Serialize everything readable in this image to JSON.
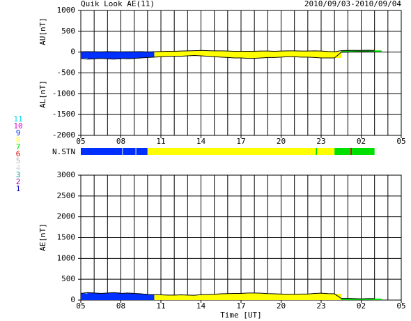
{
  "chart_data": [
    {
      "type": "range-area",
      "title": "Quik Look AE(11)",
      "date_range": "2010/09/03-2010/09/04",
      "y_labels": [
        "AU[nT]",
        "AL[nT]"
      ],
      "xlim": [
        5,
        29
      ],
      "xticks": [
        {
          "value": 5,
          "label": "05"
        },
        {
          "value": 8,
          "label": "08"
        },
        11,
        14,
        17,
        20,
        23,
        {
          "value": 26,
          "label": "02"
        },
        {
          "value": 29,
          "label": "05"
        }
      ],
      "x_grid_every": 1,
      "ylim": [
        -2000,
        1000
      ],
      "yticks": [
        -2000,
        -1500,
        -1000,
        -500,
        0,
        500,
        1000
      ],
      "grid": true,
      "x": [
        5,
        5.5,
        6,
        6.5,
        7,
        7.5,
        8,
        8.5,
        9,
        9.5,
        10,
        10.5,
        11,
        11.5,
        12,
        12.5,
        13,
        13.5,
        14,
        14.5,
        15,
        15.5,
        16,
        16.5,
        17,
        17.5,
        18,
        18.5,
        19,
        19.5,
        20,
        20.5,
        21,
        21.5,
        22,
        22.5,
        23,
        23.5,
        24,
        24.5,
        25,
        25.5,
        26,
        26.5,
        27
      ],
      "series": [
        {
          "name": "AU",
          "color": "#000000",
          "values": [
            10,
            12,
            10,
            8,
            12,
            10,
            8,
            10,
            10,
            12,
            5,
            10,
            15,
            20,
            20,
            25,
            30,
            35,
            40,
            35,
            30,
            30,
            25,
            20,
            20,
            20,
            20,
            25,
            25,
            20,
            25,
            30,
            30,
            25,
            25,
            30,
            25,
            15,
            10,
            35,
            40,
            40,
            40,
            45,
            40
          ]
        },
        {
          "name": "AL",
          "color": "#000000",
          "values": [
            -150,
            -170,
            -160,
            -150,
            -160,
            -170,
            -150,
            -160,
            -150,
            -140,
            -130,
            -120,
            -110,
            -100,
            -100,
            -100,
            -90,
            -80,
            -90,
            -100,
            -110,
            -120,
            -130,
            -140,
            -140,
            -150,
            -150,
            -140,
            -130,
            -130,
            -120,
            -110,
            -110,
            -120,
            -120,
            -130,
            -140,
            -140,
            -140,
            -5,
            0,
            5,
            10,
            10,
            5
          ]
        }
      ]
    },
    {
      "type": "station-bar",
      "label": "N.STN",
      "xlim": [
        5,
        29
      ],
      "segments": [
        {
          "start": 5,
          "end": 8.1,
          "count": 9
        },
        {
          "start": 8.15,
          "end": 9.1,
          "count": 9
        },
        {
          "start": 9.15,
          "end": 10,
          "count": 9
        },
        {
          "start": 10,
          "end": 22.6,
          "count": 8
        },
        {
          "start": 22.6,
          "end": 22.7,
          "count": 7
        },
        {
          "start": 22.7,
          "end": 24,
          "count": 8
        },
        {
          "start": 24,
          "end": 25.2,
          "count": 7
        },
        {
          "start": 25.2,
          "end": 25.3,
          "count": 6
        },
        {
          "start": 25.3,
          "end": 27,
          "count": 7
        }
      ],
      "legend": [
        {
          "count": 11,
          "color": "#00d8e8"
        },
        {
          "count": 10,
          "color": "#e000e0"
        },
        {
          "count": 9,
          "color": "#0030ff"
        },
        {
          "count": 8,
          "color": "#ffff00"
        },
        {
          "count": 7,
          "color": "#00e000"
        },
        {
          "count": 6,
          "color": "#e00000"
        },
        {
          "count": 5,
          "color": "#b0b0b0"
        },
        {
          "count": 4,
          "color": "#d8d8d8"
        },
        {
          "count": 3,
          "color": "#00a0a0"
        },
        {
          "count": 2,
          "color": "#a000a0"
        },
        {
          "count": 1,
          "color": "#0000c0"
        }
      ]
    },
    {
      "type": "area",
      "y_label": "AE[nT]",
      "x_label": "Time [UT]",
      "xlim": [
        5,
        29
      ],
      "xticks": [
        {
          "value": 5,
          "label": "05"
        },
        {
          "value": 8,
          "label": "08"
        },
        11,
        14,
        17,
        20,
        23,
        {
          "value": 26,
          "label": "02"
        },
        {
          "value": 29,
          "label": "05"
        }
      ],
      "x_grid_every": 1,
      "ylim": [
        0,
        3000
      ],
      "yticks": [
        0,
        500,
        1000,
        1500,
        2000,
        2500,
        3000
      ],
      "grid": true,
      "x": [
        5,
        5.5,
        6,
        6.5,
        7,
        7.5,
        8,
        8.5,
        9,
        9.5,
        10,
        10.5,
        11,
        11.5,
        12,
        12.5,
        13,
        13.5,
        14,
        14.5,
        15,
        15.5,
        16,
        16.5,
        17,
        17.5,
        18,
        18.5,
        19,
        19.5,
        20,
        20.5,
        21,
        21.5,
        22,
        22.5,
        23,
        23.5,
        24,
        24.5,
        25,
        25.5,
        26,
        26.5,
        27
      ],
      "series": [
        {
          "name": "AE",
          "color": "#000000",
          "values": [
            160,
            180,
            170,
            160,
            170,
            180,
            160,
            170,
            160,
            150,
            135,
            130,
            125,
            120,
            120,
            125,
            120,
            115,
            130,
            135,
            140,
            150,
            155,
            160,
            160,
            170,
            170,
            165,
            155,
            150,
            145,
            140,
            140,
            145,
            145,
            160,
            165,
            155,
            150,
            40,
            40,
            35,
            30,
            35,
            35
          ]
        }
      ]
    }
  ]
}
